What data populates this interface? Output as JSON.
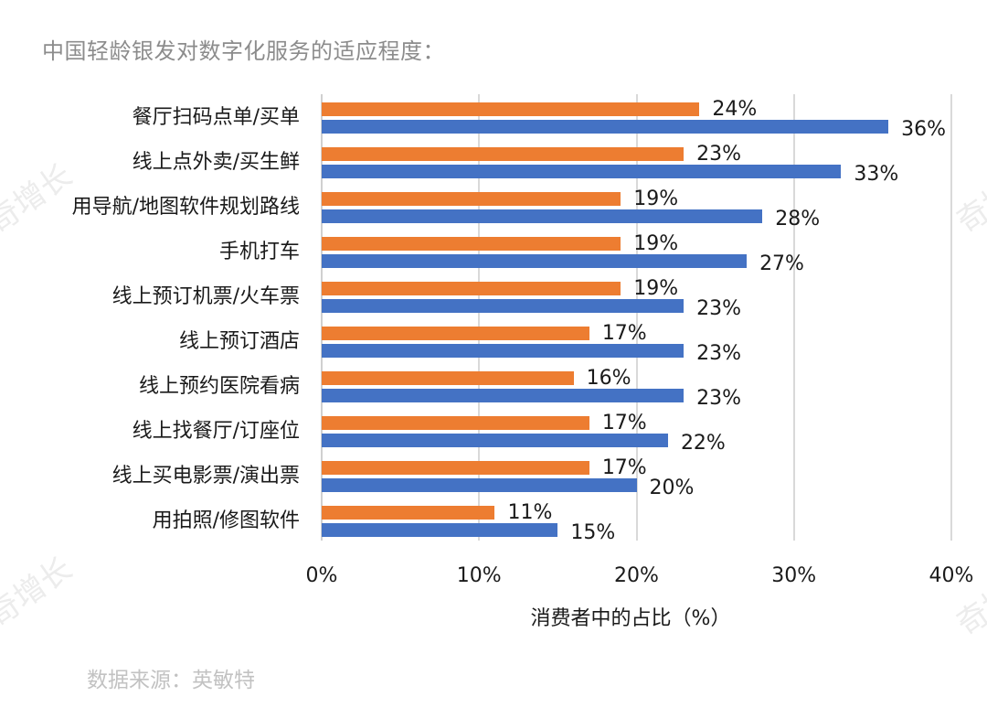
{
  "title": "中国轻龄银发对数字化服务的适应程度：",
  "source": "数据来源：英敏特",
  "watermark": "奇增长",
  "colors": {
    "series_a": "#ED7D31",
    "series_b": "#4472C4",
    "grid": "#d9d9d9"
  },
  "chart_data": {
    "type": "bar",
    "orientation": "horizontal",
    "title": "中国轻龄银发对数字化服务的适应程度：",
    "xlabel": "消费者中的占比（%）",
    "ylabel": "",
    "xlim": [
      0,
      40
    ],
    "xticks": [
      "0%",
      "10%",
      "20%",
      "30%",
      "40%"
    ],
    "grid": true,
    "legend": "none shown",
    "categories": [
      "餐厅扫码点单/买单",
      "线上点外卖/买生鲜",
      "用导航/地图软件规划路线",
      "手机打车",
      "线上预订机票/火车票",
      "线上预订酒店",
      "线上预约医院看病",
      "线上找餐厅/订座位",
      "线上买电影票/演出票",
      "用拍照/修图软件"
    ],
    "series": [
      {
        "name": "orange series",
        "color": "#ED7D31",
        "values": [
          24,
          23,
          19,
          19,
          19,
          17,
          16,
          17,
          17,
          11
        ],
        "labels": [
          "24%",
          "23%",
          "19%",
          "19%",
          "19%",
          "17%",
          "16%",
          "17%",
          "17%",
          "11%"
        ]
      },
      {
        "name": "blue series",
        "color": "#4472C4",
        "values": [
          36,
          33,
          28,
          27,
          23,
          23,
          23,
          22,
          20,
          15
        ],
        "labels": [
          "36%",
          "33%",
          "28%",
          "27%",
          "23%",
          "23%",
          "23%",
          "22%",
          "20%",
          "15%"
        ]
      }
    ]
  }
}
